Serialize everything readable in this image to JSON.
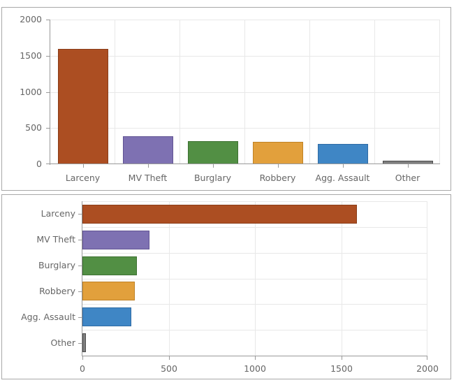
{
  "style": {
    "background": "#ffffff",
    "panel_border": "#a8a8a8",
    "axis_color": "#999999",
    "grid_color": "#e8e8e8",
    "label_color": "#666666"
  },
  "chart_data": [
    {
      "type": "bar",
      "orientation": "vertical",
      "title": "",
      "xlabel": "",
      "ylabel": "",
      "categories": [
        "Larceny",
        "MV Theft",
        "Burglary",
        "Robbery",
        "Agg. Assault",
        "Other"
      ],
      "values": [
        1590,
        390,
        315,
        305,
        285,
        20
      ],
      "value_axis": {
        "min": 0,
        "max": 2000,
        "ticks": [
          0,
          500,
          1000,
          1500,
          2000
        ],
        "tick_labels": [
          "0",
          "500",
          "1000",
          "1500",
          "2000"
        ]
      },
      "grid": true,
      "legend": "none",
      "colors": [
        {
          "fill": "#ac4e22",
          "stroke": "#8a3d19"
        },
        {
          "fill": "#7e71b2",
          "stroke": "#615393"
        },
        {
          "fill": "#528f44",
          "stroke": "#3d7132"
        },
        {
          "fill": "#e2a03c",
          "stroke": "#bf8226"
        },
        {
          "fill": "#3f86c5",
          "stroke": "#2f6ba4"
        },
        {
          "fill": "#7f7f7f",
          "stroke": "#4d4d4d"
        }
      ]
    },
    {
      "type": "bar",
      "orientation": "horizontal",
      "title": "",
      "xlabel": "",
      "ylabel": "",
      "categories": [
        "Larceny",
        "MV Theft",
        "Burglary",
        "Robbery",
        "Agg. Assault",
        "Other"
      ],
      "values": [
        1590,
        390,
        315,
        305,
        285,
        20
      ],
      "value_axis": {
        "min": 0,
        "max": 2000,
        "ticks": [
          0,
          500,
          1000,
          1500,
          2000
        ],
        "tick_labels": [
          "0",
          "500",
          "1000",
          "1500",
          "2000"
        ]
      },
      "grid": true,
      "legend": "none",
      "colors": [
        {
          "fill": "#ac4e22",
          "stroke": "#8a3d19"
        },
        {
          "fill": "#7e71b2",
          "stroke": "#615393"
        },
        {
          "fill": "#528f44",
          "stroke": "#3d7132"
        },
        {
          "fill": "#e2a03c",
          "stroke": "#bf8226"
        },
        {
          "fill": "#3f86c5",
          "stroke": "#2f6ba4"
        },
        {
          "fill": "#7f7f7f",
          "stroke": "#4d4d4d"
        }
      ]
    }
  ]
}
